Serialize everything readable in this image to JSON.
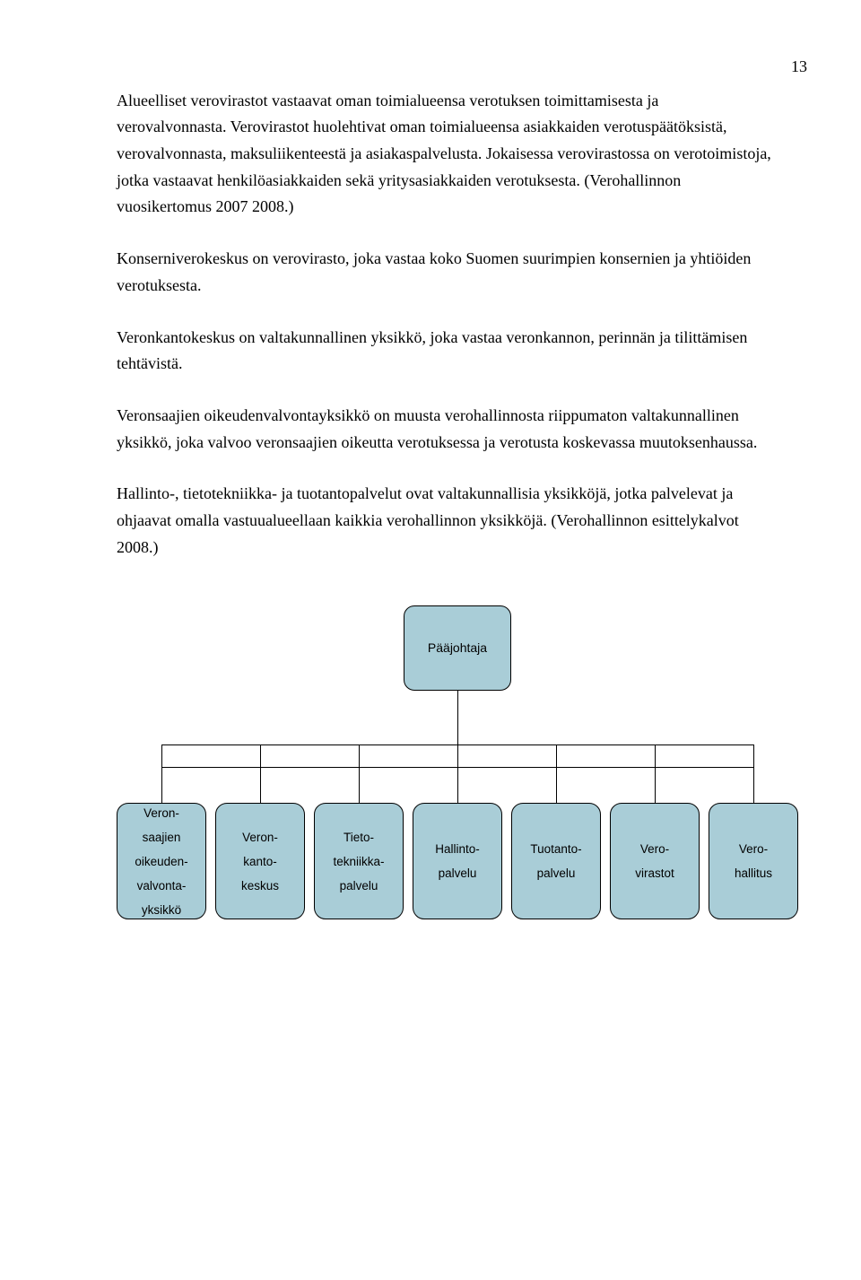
{
  "page_number": "13",
  "paragraphs": {
    "p1": "Alueelliset verovirastot vastaavat oman toimialueensa verotuksen toimittamisesta ja verovalvonnasta. Verovirastot huolehtivat oman toimialueensa asiakkaiden verotuspäätöksistä, verovalvonnasta, maksuliikenteestä ja asiakaspalvelusta. Jokaisessa verovirastossa on verotoimistoja, jotka vastaavat henkilöasiakkaiden sekä yritysasiakkaiden verotuksesta. (Verohallinnon vuosikertomus 2007 2008.)",
    "p2": "Konserniverokeskus on verovirasto, joka vastaa koko Suomen suurimpien konsernien ja yhtiöiden verotuksesta.",
    "p3": "Veronkantokeskus on valtakunnallinen yksikkö, joka vastaa veronkannon, perinnän ja tilittämisen tehtävistä.",
    "p4": "Veronsaajien oikeudenvalvontayksikkö on muusta verohallinnosta riippumaton valtakunnallinen yksikkö, joka valvoo veronsaajien oikeutta verotuksessa ja verotusta koskevassa muutoksenhaussa.",
    "p5": "Hallinto-, tietotekniikka- ja tuotantopalvelut ovat valtakunnallisia yksikköjä, jotka palvelevat ja ohjaavat omalla vastuualueellaan kaikkia verohallinnon yksikköjä. (Verohallinnon esittelykalvot 2008.)"
  },
  "diagram": {
    "type": "tree",
    "top": {
      "label": "Pääjohtaja",
      "fill": "#a9cdd7",
      "border": "#000000"
    },
    "children": [
      {
        "id": "b1",
        "lines": [
          "Veron-",
          "saajien",
          "oikeuden-",
          "valvonta-",
          "yksikkö"
        ],
        "fill": "#a9cdd7"
      },
      {
        "id": "b2",
        "lines": [
          "Veron-",
          "kanto-",
          "keskus"
        ],
        "fill": "#a9cdd7"
      },
      {
        "id": "b3",
        "lines": [
          "Tieto-",
          "tekniikka-",
          "palvelu"
        ],
        "fill": "#a9cdd7"
      },
      {
        "id": "b4",
        "lines": [
          "Hallinto-",
          "palvelu"
        ],
        "fill": "#a9cdd7"
      },
      {
        "id": "b5",
        "lines": [
          "Tuotanto-",
          "palvelu"
        ],
        "fill": "#a9cdd7"
      },
      {
        "id": "b6",
        "lines": [
          "Vero-",
          "virastot"
        ],
        "fill": "#a9cdd7"
      },
      {
        "id": "b7",
        "lines": [
          "Vero-",
          "hallitus"
        ],
        "fill": "#a9cdd7"
      }
    ],
    "line_color": "#000000",
    "background": "#ffffff",
    "font_family": "Arial",
    "box_border_radius": 12
  }
}
